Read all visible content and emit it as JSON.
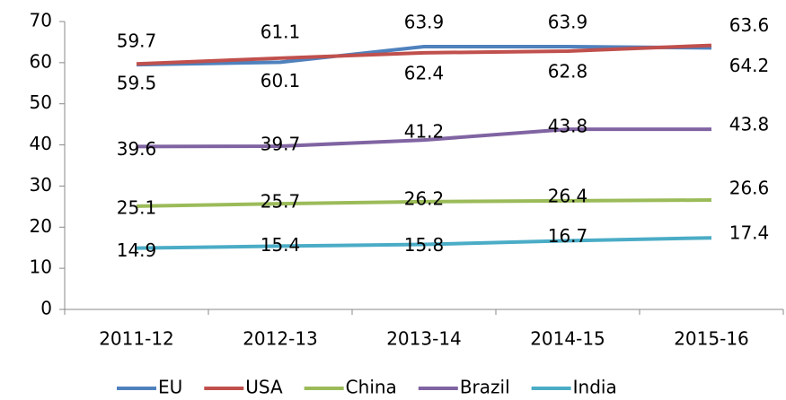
{
  "chart_data": {
    "type": "line",
    "categories": [
      "2011-12",
      "2012-13",
      "2013-14",
      "2014-15",
      "2015-16"
    ],
    "series": [
      {
        "name": "EU",
        "color": "#4f81bd",
        "label_color": "#000000",
        "values": [
          59.5,
          60.1,
          63.9,
          63.9,
          63.6
        ]
      },
      {
        "name": "USA",
        "color": "#c0504d",
        "label_color": "#a5403d",
        "values": [
          59.7,
          61.1,
          62.4,
          62.8,
          64.2
        ]
      },
      {
        "name": "China",
        "color": "#9bbb59",
        "label_color": "#4f6228",
        "values": [
          25.1,
          25.7,
          26.2,
          26.4,
          26.6
        ]
      },
      {
        "name": "Brazil",
        "color": "#8064a2",
        "label_color": "#7040a0",
        "values": [
          39.6,
          39.7,
          41.2,
          43.8,
          43.8
        ]
      },
      {
        "name": "India",
        "color": "#4bacc6",
        "label_color": "#1f3d6e",
        "values": [
          14.9,
          15.4,
          15.8,
          16.7,
          17.4
        ]
      }
    ],
    "ylim": [
      0,
      70
    ],
    "yticks": [
      0,
      10,
      20,
      30,
      40,
      50,
      60,
      70
    ],
    "grid": false,
    "legend": "bottom"
  }
}
